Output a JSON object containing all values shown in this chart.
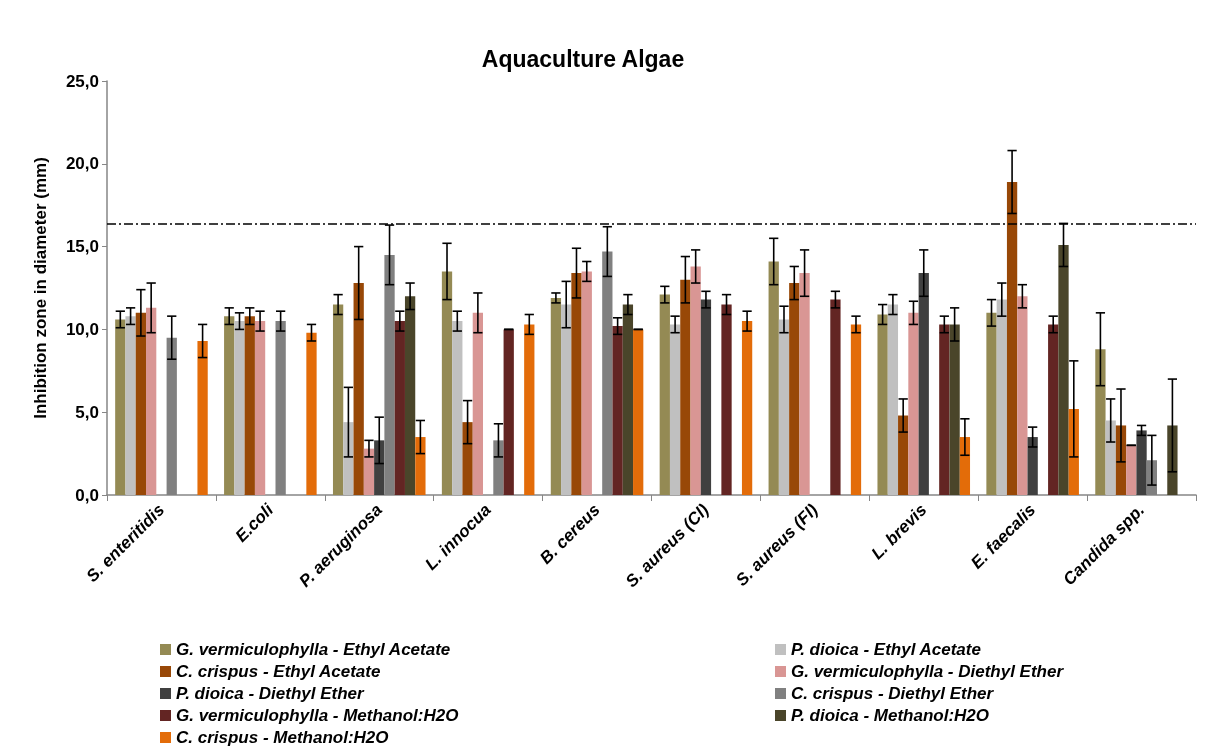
{
  "chart_data": {
    "type": "bar",
    "title": "Aquaculture Algae",
    "ylabel": "Inhibition zone in diameter (mm)",
    "categories": [
      "S. enteritidis",
      "E.coli",
      "P. aeruginosa",
      "L. innocua",
      "B. cereus",
      "S. aureus (Cl)",
      "S. aureus (Fl)",
      "L. brevis",
      "E. faecalis",
      "Candida spp."
    ],
    "ylim": [
      0,
      25
    ],
    "yticks": [
      {
        "value": 0,
        "label": "0,0"
      },
      {
        "value": 5,
        "label": "5,0"
      },
      {
        "value": 10,
        "label": "10,0"
      },
      {
        "value": 15,
        "label": "15,0"
      },
      {
        "value": 20,
        "label": "20,0"
      },
      {
        "value": 25,
        "label": "25,0"
      }
    ],
    "grid": false,
    "legend": "bottom",
    "ref_lines": [
      {
        "axis": "y",
        "value": 16.4,
        "color": "#000000",
        "line_style": "dashdot"
      }
    ],
    "series": [
      {
        "name": "G. vermiculophylla - Ethyl Acetate",
        "color": "#948a54",
        "values": [
          10.6,
          10.8,
          11.5,
          13.5,
          11.9,
          12.1,
          14.1,
          10.9,
          11.0,
          8.8
        ],
        "errors": [
          0.5,
          0.5,
          0.6,
          1.7,
          0.3,
          0.5,
          1.4,
          0.6,
          0.8,
          2.2
        ]
      },
      {
        "name": "P. dioica - Ethyl Acetate",
        "color": "#c0c0c0",
        "values": [
          10.8,
          10.5,
          4.4,
          10.5,
          11.5,
          10.3,
          10.6,
          11.5,
          11.8,
          4.5
        ],
        "errors": [
          0.5,
          0.5,
          2.1,
          0.6,
          1.4,
          0.5,
          0.8,
          0.6,
          1.0,
          1.3
        ]
      },
      {
        "name": "C. crispus - Ethyl Acetate",
        "color": "#984807",
        "values": [
          11.0,
          10.8,
          12.8,
          4.4,
          13.4,
          13.0,
          12.8,
          4.8,
          18.9,
          4.2
        ],
        "errors": [
          1.4,
          0.5,
          2.2,
          1.3,
          1.5,
          1.4,
          1.0,
          1.0,
          1.9,
          2.2
        ]
      },
      {
        "name": "G. vermiculophylla - Diethyl Ether",
        "color": "#d99694",
        "values": [
          11.3,
          10.5,
          2.8,
          11.0,
          13.5,
          13.8,
          13.4,
          11.0,
          12.0,
          3.0
        ],
        "errors": [
          1.5,
          0.6,
          0.5,
          1.2,
          0.6,
          1.0,
          1.4,
          0.7,
          0.7,
          0
        ]
      },
      {
        "name": "P. dioica - Diethyl Ether",
        "color": "#404040",
        "values": [
          null,
          null,
          3.3,
          null,
          null,
          11.8,
          null,
          13.4,
          3.5,
          3.9
        ],
        "errors": [
          null,
          null,
          1.4,
          null,
          null,
          0.5,
          null,
          1.4,
          0.6,
          0.3
        ]
      },
      {
        "name": "C. crispus - Diethyl Ether",
        "color": "#808080",
        "values": [
          9.5,
          10.5,
          14.5,
          3.3,
          14.7,
          null,
          null,
          null,
          null,
          2.1
        ],
        "errors": [
          1.3,
          0.6,
          1.8,
          1.0,
          1.5,
          null,
          null,
          null,
          null,
          1.5
        ]
      },
      {
        "name": "G. vermiculophylla - Methanol:H2O",
        "color": "#632523",
        "values": [
          null,
          null,
          10.5,
          10.0,
          10.2,
          11.5,
          11.8,
          10.3,
          10.3,
          null
        ],
        "errors": [
          null,
          null,
          0.6,
          0,
          0.5,
          0.6,
          0.5,
          0.5,
          0.5,
          null
        ]
      },
      {
        "name": "P. dioica - Methanol:H2O",
        "color": "#4a452a",
        "values": [
          null,
          null,
          12.0,
          null,
          11.5,
          null,
          null,
          10.3,
          15.1,
          4.2
        ],
        "errors": [
          null,
          null,
          0.8,
          null,
          0.6,
          null,
          null,
          1.0,
          1.3,
          2.8
        ]
      },
      {
        "name": "C. crispus - Methanol:H2O",
        "color": "#e36c09",
        "values": [
          9.3,
          9.8,
          3.5,
          10.3,
          10.0,
          10.5,
          10.3,
          3.5,
          5.2,
          null
        ],
        "errors": [
          1.0,
          0.5,
          1.0,
          0.6,
          0,
          0.6,
          0.5,
          1.1,
          2.9,
          null
        ]
      }
    ]
  }
}
